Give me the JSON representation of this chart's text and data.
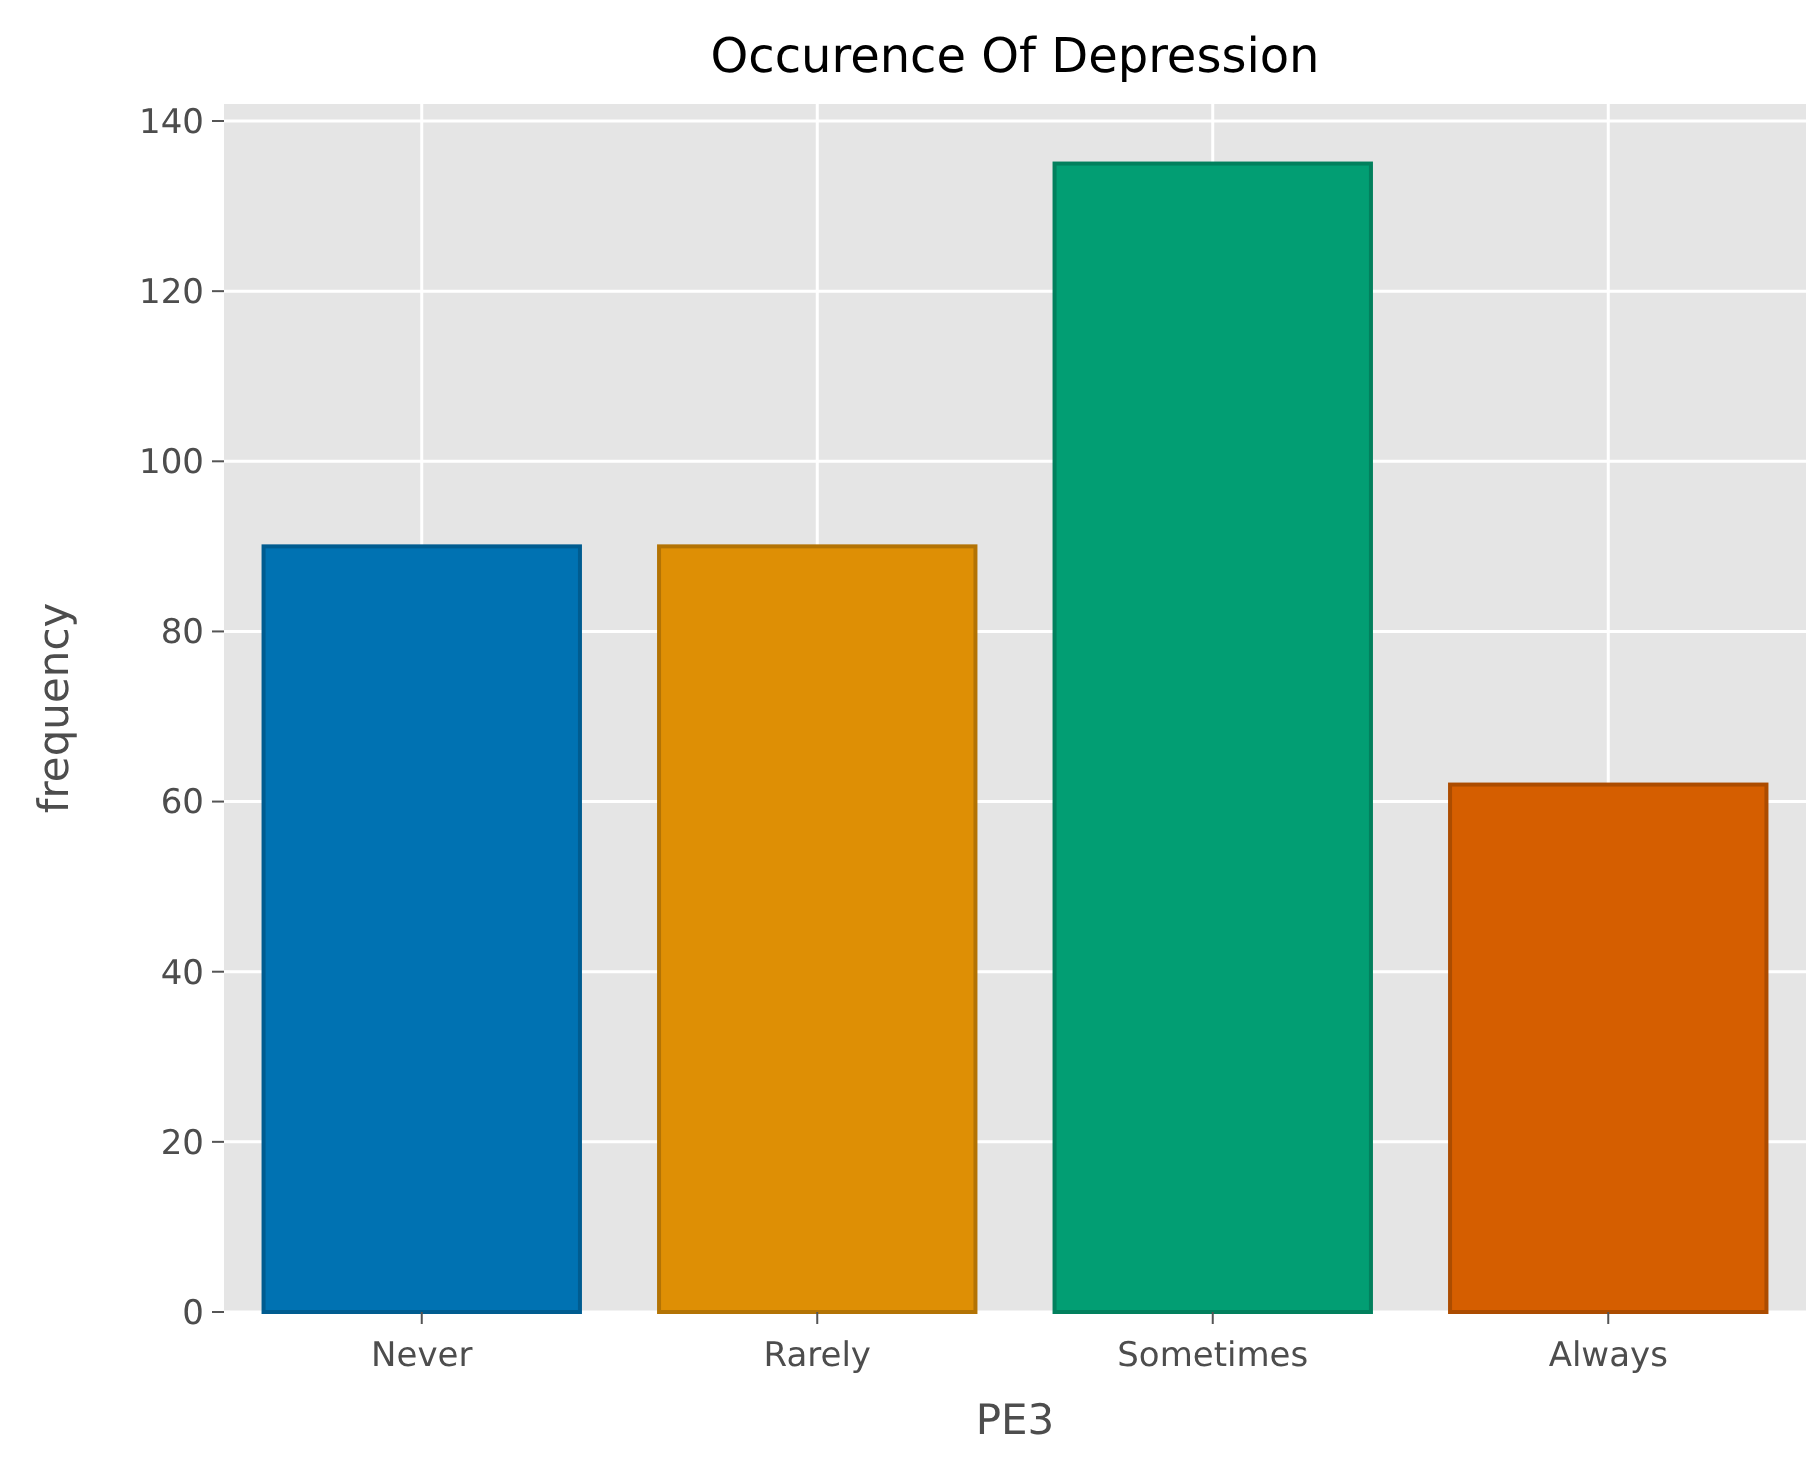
{
  "chart_data": {
    "type": "bar",
    "title": "Occurence Of Depression",
    "xlabel": "PE3",
    "ylabel": "frequency",
    "categories": [
      "Never",
      "Rarely",
      "Sometimes",
      "Always"
    ],
    "values": [
      90,
      90,
      135,
      62
    ],
    "colors": [
      "#0072b2",
      "#de8f05",
      "#029e73",
      "#d55e00"
    ],
    "ylim": [
      0,
      142
    ],
    "yticks": [
      0,
      20,
      40,
      60,
      80,
      100,
      120,
      140
    ],
    "grid": true
  }
}
